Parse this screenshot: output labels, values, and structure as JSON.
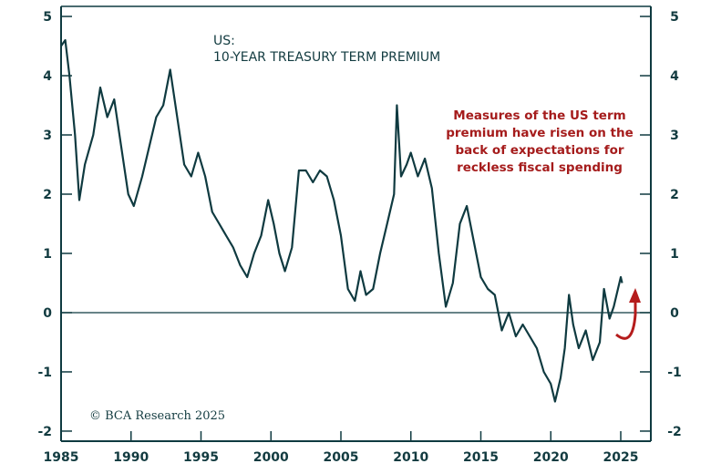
{
  "chart_data": {
    "type": "line",
    "title": "US:",
    "subtitle": "10-YEAR TREASURY TERM PREMIUM",
    "xlabel": "",
    "ylabel": "",
    "xlim": [
      1985,
      2027.15
    ],
    "ylim": [
      -2.17,
      5.17
    ],
    "x_ticks": [
      "1985",
      "1990",
      "1995",
      "2000",
      "2005",
      "2010",
      "2015",
      "2020",
      "2025"
    ],
    "y_ticks": [
      "5",
      "4",
      "3",
      "2",
      "1",
      "0",
      "-1",
      "-2"
    ],
    "grid": false,
    "line_color": "#0f3a40",
    "annotation_color": "#a51c1c",
    "annotation": [
      "Measures of the US term",
      "premium have risen on the",
      "back of expectations for",
      "reckless fiscal spending"
    ],
    "copyright": "© BCA Research 2025",
    "series": [
      {
        "x": [
          1985.0,
          1985.3,
          1985.6,
          1986.0,
          1986.3,
          1986.7,
          1987.3,
          1987.8,
          1988.3,
          1988.8,
          1989.3,
          1989.8,
          1990.2,
          1990.8,
          1991.3,
          1991.8,
          1992.3,
          1992.8,
          1993.3,
          1993.8,
          1994.3,
          1994.8,
          1995.3,
          1995.8,
          1996.3,
          1996.8,
          1997.3,
          1997.8,
          1998.3,
          1998.8,
          1999.3,
          1999.8,
          2000.2,
          2000.6,
          2001.0,
          2001.5,
          2002.0,
          2002.5,
          2003.0,
          2003.5,
          2004.0,
          2004.5,
          2005.0,
          2005.5,
          2006.0,
          2006.4,
          2006.8,
          2007.3,
          2007.8,
          2008.3,
          2008.8,
          2009.0,
          2009.3,
          2009.7,
          2010.0,
          2010.5,
          2011.0,
          2011.5,
          2012.0,
          2012.5,
          2013.0,
          2013.5,
          2014.0,
          2014.5,
          2015.0,
          2015.5,
          2016.0,
          2016.5,
          2017.0,
          2017.5,
          2018.0,
          2018.5,
          2019.0,
          2019.5,
          2020.0,
          2020.3,
          2020.7,
          2021.0,
          2021.3,
          2021.6,
          2022.0,
          2022.5,
          2023.0,
          2023.5,
          2023.8,
          2024.2,
          2024.5,
          2025.0,
          2025.1
        ],
        "y": [
          4.5,
          4.6,
          4.0,
          3.0,
          1.9,
          2.5,
          3.0,
          3.8,
          3.3,
          3.6,
          2.8,
          2.0,
          1.8,
          2.3,
          2.8,
          3.3,
          3.5,
          4.1,
          3.3,
          2.5,
          2.3,
          2.7,
          2.3,
          1.7,
          1.5,
          1.3,
          1.1,
          0.8,
          0.6,
          1.0,
          1.3,
          1.9,
          1.5,
          1.0,
          0.7,
          1.1,
          2.4,
          2.4,
          2.2,
          2.4,
          2.3,
          1.9,
          1.3,
          0.4,
          0.2,
          0.7,
          0.3,
          0.4,
          1.0,
          1.5,
          2.0,
          3.5,
          2.3,
          2.5,
          2.7,
          2.3,
          2.6,
          2.1,
          1.0,
          0.1,
          0.5,
          1.5,
          1.8,
          1.2,
          0.6,
          0.4,
          0.3,
          -0.3,
          0.0,
          -0.4,
          -0.2,
          -0.4,
          -0.6,
          -1.0,
          -1.2,
          -1.5,
          -1.1,
          -0.6,
          0.3,
          -0.2,
          -0.6,
          -0.3,
          -0.8,
          -0.5,
          0.4,
          -0.1,
          0.1,
          0.6,
          0.5
        ]
      }
    ]
  }
}
